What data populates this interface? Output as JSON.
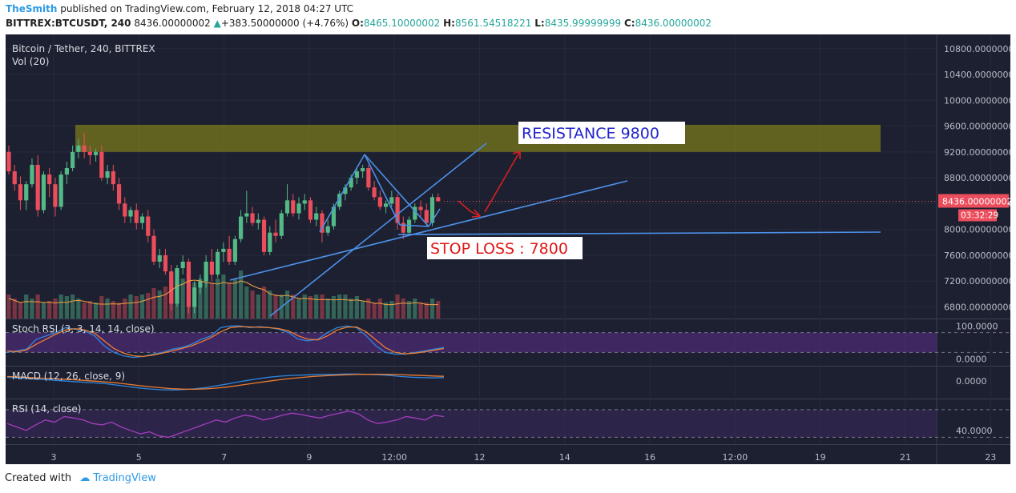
{
  "header": {
    "user": "TheSmith",
    "published": " published on TradingView.com, February 12, 2018 04:27 UTC",
    "symbol": "BITTREX:BTCUSDT, 240",
    "last": "8436.00000002",
    "change": "+383.50000000 (+4.76%)",
    "o_label": "O:",
    "o_val": "8465.10000002",
    "h_label": "H:",
    "h_val": "8561.54518221",
    "l_label": "L:",
    "l_val": "8435.99999999",
    "c_label": "C:",
    "c_val": "8436.00000002"
  },
  "footer": {
    "created_with": "Created with",
    "brand": "TradingView"
  },
  "colors": {
    "bg": "#1d2030",
    "up": "#53b987",
    "down": "#eb4d5c",
    "line": "#4c8fe6",
    "zone": "#8f8f16",
    "price_tag": "#eb4d5c",
    "rsi": "#a63dbf"
  },
  "chart_data": [
    {
      "type": "candlestick",
      "title": "Bitcoin / Tether, 240, BITTREX",
      "volume_label": "Vol (20)",
      "x_ticks": [
        "3",
        "5",
        "7",
        "9",
        "12:00",
        "12",
        "14",
        "16",
        "12:00",
        "19",
        "21",
        "23"
      ],
      "y_ticks": [
        "10800.00000000",
        "10400.00000000",
        "10000.00000000",
        "9600.00000000",
        "9200.00000000",
        "8800.00000000",
        "8400.00000000",
        "8000.00000000",
        "7600.00000000",
        "7200.00000000",
        "6800.00000000"
      ],
      "ylim": [
        6620,
        11020
      ],
      "last_price_label": "8436.00000002",
      "countdown": "03:32:29",
      "candles": [
        {
          "o": 9200,
          "h": 9300,
          "c": 8900,
          "l": 8850
        },
        {
          "o": 8900,
          "h": 9000,
          "c": 8700,
          "l": 8600
        },
        {
          "o": 8700,
          "h": 8820,
          "c": 8450,
          "l": 8300
        },
        {
          "o": 8450,
          "h": 8750,
          "c": 8700,
          "l": 8300
        },
        {
          "o": 8700,
          "h": 9100,
          "c": 9000,
          "l": 8650
        },
        {
          "o": 9000,
          "h": 9150,
          "c": 8300,
          "l": 8200
        },
        {
          "o": 8300,
          "h": 8900,
          "c": 8850,
          "l": 8250
        },
        {
          "o": 8850,
          "h": 8950,
          "c": 8700,
          "l": 8500
        },
        {
          "o": 8700,
          "h": 8800,
          "c": 8350,
          "l": 8200
        },
        {
          "o": 8350,
          "h": 8900,
          "c": 8850,
          "l": 8300
        },
        {
          "o": 8850,
          "h": 9050,
          "c": 8950,
          "l": 8700
        },
        {
          "o": 8950,
          "h": 9300,
          "c": 9200,
          "l": 8900
        },
        {
          "o": 9200,
          "h": 9400,
          "c": 9300,
          "l": 9100
        },
        {
          "o": 9300,
          "h": 9500,
          "c": 9200,
          "l": 9100
        },
        {
          "o": 9200,
          "h": 9300,
          "c": 9150,
          "l": 9000
        },
        {
          "o": 9150,
          "h": 9250,
          "c": 9200,
          "l": 9050
        },
        {
          "o": 9200,
          "h": 9300,
          "c": 8800,
          "l": 8750
        },
        {
          "o": 8800,
          "h": 9000,
          "c": 8900,
          "l": 8700
        },
        {
          "o": 8900,
          "h": 9000,
          "c": 8700,
          "l": 8600
        },
        {
          "o": 8700,
          "h": 8800,
          "c": 8400,
          "l": 8300
        },
        {
          "o": 8400,
          "h": 8500,
          "c": 8200,
          "l": 8100
        },
        {
          "o": 8200,
          "h": 8350,
          "c": 8300,
          "l": 8100
        },
        {
          "o": 8300,
          "h": 8400,
          "c": 8100,
          "l": 8000
        },
        {
          "o": 8100,
          "h": 8250,
          "c": 8200,
          "l": 8000
        },
        {
          "o": 8200,
          "h": 8300,
          "c": 7900,
          "l": 7800
        },
        {
          "o": 7900,
          "h": 8000,
          "c": 7500,
          "l": 7450
        },
        {
          "o": 7500,
          "h": 7700,
          "c": 7600,
          "l": 7400
        },
        {
          "o": 7600,
          "h": 7700,
          "c": 7350,
          "l": 7300
        },
        {
          "o": 7350,
          "h": 7450,
          "c": 6850,
          "l": 6750
        },
        {
          "o": 6850,
          "h": 7450,
          "c": 7400,
          "l": 6800
        },
        {
          "o": 7400,
          "h": 7600,
          "c": 7500,
          "l": 7300
        },
        {
          "o": 7500,
          "h": 7550,
          "c": 6800,
          "l": 6700
        },
        {
          "o": 6800,
          "h": 7200,
          "c": 7100,
          "l": 6700
        },
        {
          "o": 7100,
          "h": 7300,
          "c": 7200,
          "l": 7000
        },
        {
          "o": 7200,
          "h": 7600,
          "c": 7500,
          "l": 7100
        },
        {
          "o": 7500,
          "h": 7700,
          "c": 7300,
          "l": 7200
        },
        {
          "o": 7300,
          "h": 7700,
          "c": 7650,
          "l": 7250
        },
        {
          "o": 7650,
          "h": 7800,
          "c": 7700,
          "l": 7500
        },
        {
          "o": 7700,
          "h": 7900,
          "c": 7500,
          "l": 7450
        },
        {
          "o": 7500,
          "h": 7900,
          "c": 7850,
          "l": 7450
        },
        {
          "o": 7850,
          "h": 8300,
          "c": 8200,
          "l": 7800
        },
        {
          "o": 8200,
          "h": 8600,
          "c": 8250,
          "l": 8100
        },
        {
          "o": 8250,
          "h": 8350,
          "c": 8100,
          "l": 8050
        },
        {
          "o": 8100,
          "h": 8250,
          "c": 8150,
          "l": 8000
        },
        {
          "o": 8150,
          "h": 8200,
          "c": 7650,
          "l": 7600
        },
        {
          "o": 7650,
          "h": 8050,
          "c": 7950,
          "l": 7600
        },
        {
          "o": 7950,
          "h": 8150,
          "c": 7900,
          "l": 7800
        },
        {
          "o": 7900,
          "h": 8300,
          "c": 8250,
          "l": 7850
        },
        {
          "o": 8250,
          "h": 8700,
          "c": 8450,
          "l": 8200
        },
        {
          "o": 8450,
          "h": 8550,
          "c": 8250,
          "l": 8200
        },
        {
          "o": 8250,
          "h": 8500,
          "c": 8400,
          "l": 8150
        },
        {
          "o": 8400,
          "h": 8550,
          "c": 8450,
          "l": 8300
        },
        {
          "o": 8450,
          "h": 8500,
          "c": 8150,
          "l": 8100
        },
        {
          "o": 8150,
          "h": 8350,
          "c": 8250,
          "l": 8050
        },
        {
          "o": 8250,
          "h": 8300,
          "c": 7950,
          "l": 7800
        },
        {
          "o": 7950,
          "h": 8150,
          "c": 8050,
          "l": 7900
        },
        {
          "o": 8050,
          "h": 8400,
          "c": 8350,
          "l": 8000
        },
        {
          "o": 8350,
          "h": 8600,
          "c": 8550,
          "l": 8300
        },
        {
          "o": 8550,
          "h": 8700,
          "c": 8650,
          "l": 8450
        },
        {
          "o": 8650,
          "h": 8850,
          "c": 8800,
          "l": 8600
        },
        {
          "o": 8800,
          "h": 8950,
          "c": 8900,
          "l": 8700
        },
        {
          "o": 8900,
          "h": 9000,
          "c": 8950,
          "l": 8800
        },
        {
          "o": 8950,
          "h": 9000,
          "c": 8650,
          "l": 8600
        },
        {
          "o": 8650,
          "h": 8750,
          "c": 8500,
          "l": 8450
        },
        {
          "o": 8500,
          "h": 8600,
          "c": 8350,
          "l": 8300
        },
        {
          "o": 8350,
          "h": 8450,
          "c": 8400,
          "l": 8250
        },
        {
          "o": 8400,
          "h": 8600,
          "c": 8500,
          "l": 8350
        },
        {
          "o": 8500,
          "h": 8550,
          "c": 8100,
          "l": 8000
        },
        {
          "o": 8100,
          "h": 8200,
          "c": 7950,
          "l": 7850
        },
        {
          "o": 7950,
          "h": 8200,
          "c": 8150,
          "l": 7900
        },
        {
          "o": 8150,
          "h": 8400,
          "c": 8350,
          "l": 8100
        },
        {
          "o": 8350,
          "h": 8450,
          "c": 8300,
          "l": 8200
        },
        {
          "o": 8300,
          "h": 8400,
          "c": 8100,
          "l": 8050
        },
        {
          "o": 8100,
          "h": 8550,
          "c": 8500,
          "l": 8050
        },
        {
          "o": 8500,
          "h": 8560,
          "c": 8436,
          "l": 8430
        }
      ],
      "volume": [
        0.3,
        0.25,
        0.2,
        0.3,
        0.25,
        0.3,
        0.2,
        0.22,
        0.25,
        0.3,
        0.28,
        0.3,
        0.25,
        0.2,
        0.22,
        0.2,
        0.28,
        0.25,
        0.22,
        0.2,
        0.25,
        0.3,
        0.28,
        0.3,
        0.32,
        0.38,
        0.35,
        0.4,
        0.55,
        0.6,
        0.5,
        0.55,
        0.45,
        0.5,
        0.5,
        0.45,
        0.5,
        0.55,
        0.45,
        0.5,
        0.6,
        0.4,
        0.35,
        0.3,
        0.4,
        0.35,
        0.3,
        0.3,
        0.35,
        0.3,
        0.25,
        0.3,
        0.28,
        0.3,
        0.3,
        0.25,
        0.28,
        0.3,
        0.3,
        0.25,
        0.28,
        0.22,
        0.25,
        0.2,
        0.25,
        0.2,
        0.22,
        0.3,
        0.25,
        0.22,
        0.25,
        0.2,
        0.2,
        0.25,
        0.22
      ],
      "zone": {
        "from": 9200,
        "to": 9620
      },
      "annotations": {
        "resistance": "RESISTANCE   9800",
        "stop_loss": "STOP LOSS : 7800"
      }
    },
    {
      "type": "line",
      "title": "Stoch RSI (3, 3, 14, 14, close)",
      "y_ticks": [
        "100.0000",
        "0.0000"
      ],
      "ylim": [
        -20,
        120
      ],
      "bands": [
        20,
        80
      ],
      "series": [
        {
          "values": [
            20,
            25,
            30,
            60,
            70,
            80,
            95,
            90,
            85,
            70,
            40,
            20,
            10,
            5,
            8,
            15,
            20,
            30,
            35,
            45,
            60,
            70,
            95,
            100,
            100,
            95,
            98,
            95,
            90,
            80,
            60,
            55,
            60,
            80,
            95,
            100,
            95,
            70,
            40,
            20,
            15,
            15,
            20,
            25,
            30,
            35
          ]
        },
        {
          "values": [
            25,
            22,
            28,
            45,
            60,
            75,
            88,
            92,
            88,
            78,
            55,
            32,
            18,
            10,
            8,
            12,
            18,
            25,
            32,
            40,
            52,
            65,
            82,
            95,
            98,
            97,
            96,
            95,
            92,
            85,
            70,
            60,
            58,
            70,
            88,
            96,
            97,
            82,
            58,
            34,
            20,
            16,
            18,
            22,
            27,
            32
          ]
        }
      ]
    },
    {
      "type": "line",
      "title": "MACD (12, 26, close, 9)",
      "y_ticks": [
        "0.0000"
      ],
      "ylim": [
        -500,
        400
      ],
      "series": [
        {
          "values": [
            100,
            80,
            60,
            40,
            20,
            0,
            -20,
            -40,
            -60,
            -80,
            -120,
            -160,
            -200,
            -230,
            -250,
            -260,
            -250,
            -230,
            -200,
            -150,
            -100,
            -40,
            10,
            60,
            100,
            130,
            150,
            160,
            170,
            180,
            180,
            190,
            190,
            180,
            170,
            150,
            120,
            100,
            90,
            80,
            90
          ]
        },
        {
          "values": [
            120,
            105,
            90,
            75,
            60,
            45,
            30,
            10,
            -10,
            -30,
            -60,
            -95,
            -130,
            -165,
            -195,
            -220,
            -235,
            -238,
            -230,
            -210,
            -180,
            -140,
            -95,
            -50,
            -10,
            30,
            65,
            95,
            120,
            140,
            155,
            168,
            178,
            182,
            183,
            180,
            172,
            160,
            148,
            135,
            125
          ]
        }
      ]
    },
    {
      "type": "line",
      "title": "RSI (14, close)",
      "y_ticks": [
        "40.0000"
      ],
      "ylim": [
        20,
        85
      ],
      "bands": [
        30,
        70
      ],
      "series": [
        {
          "values": [
            50,
            45,
            40,
            48,
            55,
            52,
            60,
            58,
            55,
            50,
            48,
            52,
            45,
            40,
            35,
            38,
            32,
            30,
            35,
            40,
            45,
            50,
            55,
            52,
            58,
            62,
            60,
            55,
            58,
            62,
            65,
            63,
            60,
            58,
            62,
            65,
            68,
            64,
            55,
            50,
            52,
            55,
            60,
            58,
            55,
            62,
            60
          ]
        }
      ]
    }
  ]
}
